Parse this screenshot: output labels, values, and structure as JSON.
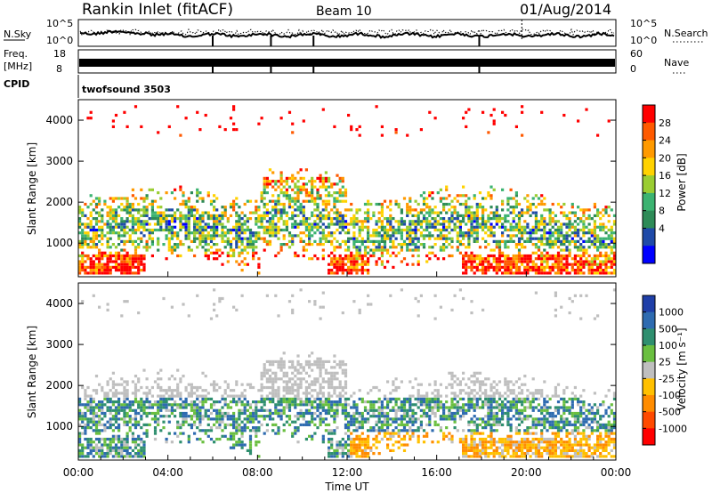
{
  "header": {
    "station": "Rankin Inlet (fitACF)",
    "beam": "Beam 10",
    "date": "01/Aug/2014"
  },
  "top_panels": {
    "nsky_label": "N.Sky",
    "nsky_ticks": [
      "10^5",
      "10^0"
    ],
    "nsearch_label": "N.Search",
    "nsearch_ticks": [
      "10^5",
      "10^0"
    ],
    "freq_label": "Freq.",
    "freq_unit": "[MHz]",
    "freq_ticks": [
      "18",
      "8"
    ],
    "nave_label": "Nave",
    "nave_ticks": [
      "60",
      "0"
    ],
    "cpid_label": "CPID",
    "cpid_value": "twofsound 3503"
  },
  "chart_data": [
    {
      "type": "heatmap",
      "name": "power",
      "ylabel": "Slant Range [km]",
      "ylim": [
        180,
        4500
      ],
      "yticks": [
        "4000",
        "3000",
        "2000",
        "1000"
      ],
      "xlabel": "Time UT",
      "xticks": [
        "00:00",
        "04:00",
        "08:00",
        "12:00",
        "16:00",
        "20:00",
        "00:00"
      ],
      "xlim_hours": [
        0,
        24
      ],
      "colorbar_label": "Power [dB]",
      "colorbar_ticks": [
        "28",
        "24",
        "20",
        "16",
        "12",
        "8",
        "4"
      ],
      "colorbar_colors": [
        "#ff0000",
        "#ff5a00",
        "#ff9a00",
        "#ffd200",
        "#9acd32",
        "#3cb371",
        "#2e8b57",
        "#1f4aa8",
        "#0000ff"
      ]
    },
    {
      "type": "heatmap",
      "name": "velocity",
      "ylabel": "Slant Range [km]",
      "ylim": [
        180,
        4500
      ],
      "yticks": [
        "4000",
        "3000",
        "2000",
        "1000"
      ],
      "xlabel": "Time UT",
      "xticks": [
        "00:00",
        "04:00",
        "08:00",
        "12:00",
        "16:00",
        "20:00",
        "00:00"
      ],
      "xlim_hours": [
        0,
        24
      ],
      "colorbar_label": "Velocity [m s⁻¹]",
      "colorbar_ticks": [
        "1000",
        "500",
        "100",
        "25",
        "-25",
        "-100",
        "-500",
        "-1000"
      ],
      "colorbar_colors": [
        "#1f3fa8",
        "#2e6bb0",
        "#2f8f6f",
        "#6abf40",
        "#bfbfbf",
        "#ffc000",
        "#ff8c00",
        "#ff4a00",
        "#ff0000"
      ]
    }
  ]
}
